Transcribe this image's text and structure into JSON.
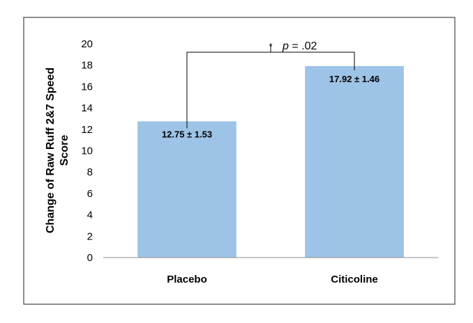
{
  "chart_data": {
    "type": "bar",
    "categories": [
      "Placebo",
      "Citicoline"
    ],
    "values": [
      12.75,
      17.92
    ],
    "data_labels": [
      "12.75 ± 1.53",
      "17.92 ± 1.46"
    ],
    "title": "",
    "xlabel": "",
    "ylabel": "Change of Raw Ruff 2&7 Speed Score",
    "ylabel_lines": [
      "Change of Raw Ruff 2&7 Speed",
      "Score"
    ],
    "ylim": [
      0,
      20
    ],
    "yticks": [
      "0",
      "2",
      "4",
      "6",
      "8",
      "10",
      "12",
      "14",
      "16",
      "18",
      "20"
    ],
    "grid": false,
    "legend": "none",
    "bar_color": "#9DC3E6",
    "annotation": {
      "star": "*",
      "italic": "p",
      "text": " = .02"
    }
  }
}
